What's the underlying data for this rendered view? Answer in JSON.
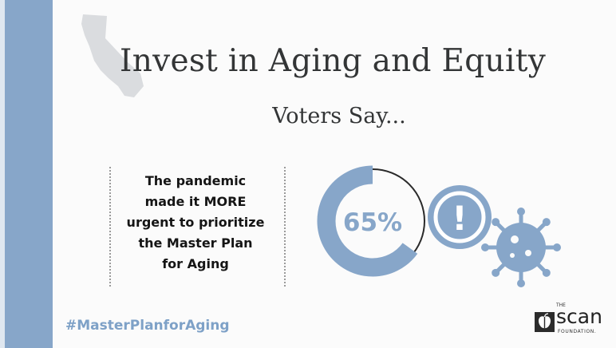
{
  "slide": {
    "title": "Invest in Aging and Equity",
    "subtitle": "Voters Say...",
    "statement_lines": [
      "The pandemic",
      "made it MORE",
      "urgent to prioritize",
      "the Master Plan",
      "for Aging"
    ],
    "stat": {
      "value_label": "65%",
      "fraction": 0.65
    },
    "alert_glyph": "!",
    "hashtag": "#MasterPlanforAging"
  },
  "logo": {
    "the": "THE",
    "word": "scan",
    "foundation": "FOUNDATION."
  },
  "colors": {
    "accent_blue": "#87a6c9",
    "title_text": "#333536",
    "hashtag_blue": "#7ea1c7"
  },
  "icons": [
    "california-map-icon",
    "alert-icon",
    "virus-icon",
    "apple-logo-icon"
  ]
}
